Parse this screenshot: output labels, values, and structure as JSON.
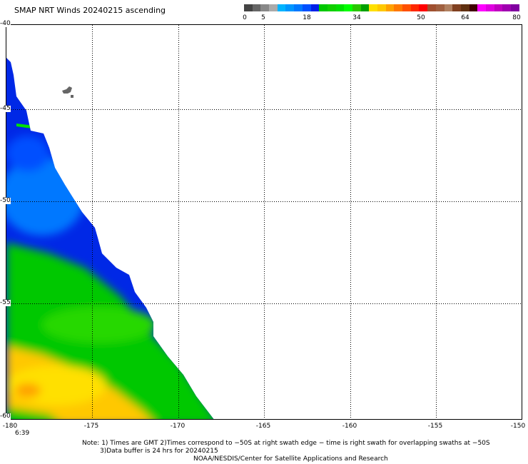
{
  "title": "SMAP NRT Winds 20240215 ascending",
  "colorbar": {
    "labels": [
      "0",
      "5",
      "18",
      "34",
      "50",
      "64",
      "80"
    ],
    "colors": [
      "#444444",
      "#666666",
      "#888888",
      "#aaaaaa",
      "#00b4ff",
      "#0096ff",
      "#0078ff",
      "#0050ff",
      "#0020e8",
      "#00c800",
      "#10d000",
      "#00e000",
      "#00ff00",
      "#28c800",
      "#00a000",
      "#ffe000",
      "#ffc800",
      "#ffa000",
      "#ff7800",
      "#ff5000",
      "#ff2800",
      "#ff0000",
      "#a05030",
      "#a06040",
      "#b08060",
      "#804020",
      "#603010",
      "#400000",
      "#ff00ff",
      "#e000e0",
      "#c000c0",
      "#a000b0",
      "#8000a0"
    ]
  },
  "axes": {
    "x_ticks": [
      "-180",
      "-175",
      "-170",
      "-165",
      "-160",
      "-155",
      "-150"
    ],
    "y_ticks": [
      "-40",
      "-45",
      "-50",
      "-55",
      "-60"
    ]
  },
  "time_label": "6:39",
  "notes": {
    "line1": "Note: 1) Times are GMT 2)Times correspond to −50S at right swath edge − time is right swath for overlapping swaths at −50S",
    "line2": "3)Data buffer is 24 hrs for 20240215",
    "line3": "NOAA/NESDIS/Center for Satellite Applications and Research"
  }
}
